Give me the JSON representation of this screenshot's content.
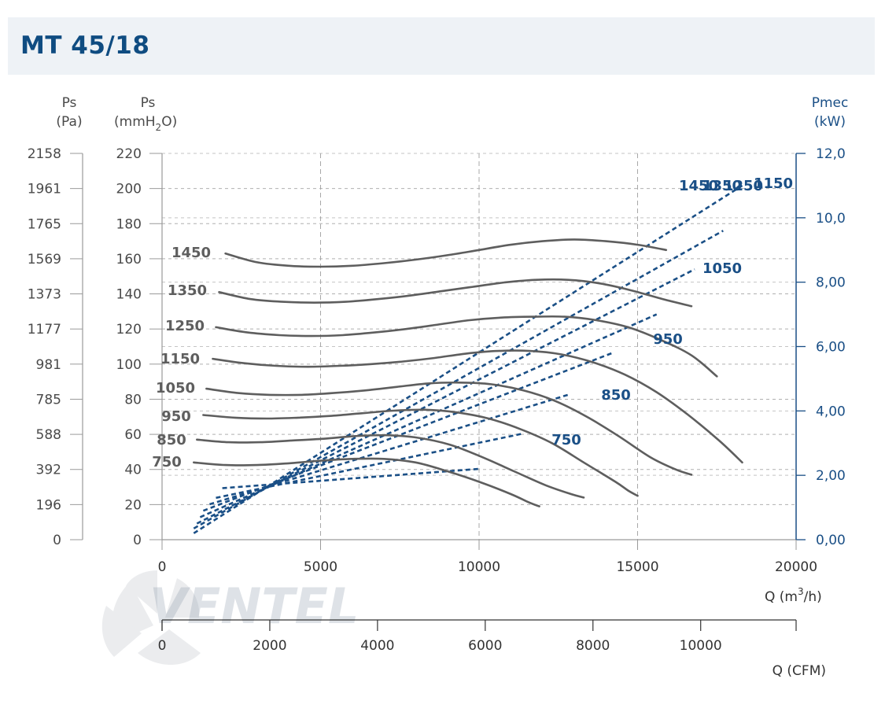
{
  "header": {
    "title": "MT 45/18"
  },
  "chart_data": {
    "type": "line",
    "title": "MT 45/18",
    "left_axis_pa": {
      "label_top": "Ps",
      "label_bottom": "(Pa)",
      "ticks": [
        "2158",
        "1961",
        "1765",
        "1569",
        "1373",
        "1177",
        "981",
        "785",
        "588",
        "392",
        "196",
        "0"
      ]
    },
    "left_axis_mmh2o": {
      "label_top": "Ps",
      "label_bottom": "(mmH",
      "label_sub": "2",
      "label_end": "O)",
      "ticks": [
        220,
        200,
        180,
        160,
        140,
        120,
        100,
        80,
        60,
        40,
        20,
        0
      ],
      "ylim": [
        0,
        220
      ]
    },
    "right_axis_pmec": {
      "label_top": "Pmec",
      "label_bottom": "(kW)",
      "ticks": [
        "12,0",
        "10,0",
        "8,00",
        "6,00",
        "4,00",
        "2,00",
        "0,00"
      ],
      "ylim": [
        0,
        12
      ]
    },
    "x_axis_m3h": {
      "ticks": [
        0,
        5000,
        10000,
        15000,
        20000
      ],
      "label_main": "Q (m",
      "label_sup": "3",
      "label_end": "/h)",
      "xlim": [
        0,
        20000
      ]
    },
    "x_axis_cfm": {
      "ticks": [
        0,
        2000,
        4000,
        6000,
        8000,
        10000
      ],
      "label": "Q (CFM)"
    },
    "pressure_curves": [
      {
        "name": "1450",
        "x": [
          2000,
          3000,
          4000,
          5000,
          6000,
          7000,
          8000,
          9000,
          10000,
          11000,
          12000,
          13000,
          14000,
          15000,
          15900
        ],
        "y": [
          163,
          158,
          156,
          155.5,
          156,
          157.5,
          159.5,
          162,
          165,
          168,
          170,
          171,
          170,
          168,
          165
        ]
      },
      {
        "name": "1350",
        "x": [
          1800,
          2800,
          3800,
          4800,
          5800,
          6800,
          7800,
          8800,
          9800,
          10800,
          11800,
          12800,
          13800,
          14800,
          15800,
          16700
        ],
        "y": [
          141,
          137,
          135.5,
          135,
          135.5,
          137,
          139,
          141.5,
          144,
          146.5,
          148,
          148,
          146,
          142,
          137,
          133
        ]
      },
      {
        "name": "1250",
        "x": [
          1700,
          2700,
          3700,
          4700,
          5700,
          6700,
          7700,
          8700,
          9700,
          10700,
          11700,
          12700,
          13700,
          14700,
          15700,
          16700,
          17500
        ],
        "y": [
          121,
          118,
          116.5,
          116,
          116.5,
          118,
          120,
          122.5,
          125,
          126.5,
          127,
          127,
          125,
          121,
          114,
          105,
          93
        ]
      },
      {
        "name": "1150",
        "x": [
          1600,
          2600,
          3600,
          4600,
          5600,
          6600,
          7600,
          8600,
          9600,
          10600,
          11600,
          12600,
          13600,
          14600,
          15600,
          16600,
          17600,
          18300
        ],
        "y": [
          103,
          100.5,
          99,
          98.5,
          99,
          100,
          101.5,
          103.5,
          106,
          107.5,
          107.5,
          105.5,
          101,
          94,
          84,
          71,
          56,
          44
        ]
      },
      {
        "name": "1050",
        "x": [
          1400,
          2400,
          3400,
          4400,
          5400,
          6400,
          7400,
          8400,
          9400,
          10400,
          11400,
          12400,
          13400,
          14400,
          15400,
          16200,
          16700
        ],
        "y": [
          86,
          83.5,
          82.5,
          82.5,
          83.5,
          85,
          87,
          89,
          89.5,
          88.5,
          85,
          79,
          70,
          59,
          47,
          40,
          37
        ]
      },
      {
        "name": "950",
        "x": [
          1300,
          2300,
          3300,
          4300,
          5300,
          6300,
          7300,
          8300,
          9300,
          10300,
          11300,
          12300,
          13300,
          14300,
          14700,
          15000
        ],
        "y": [
          71,
          69.5,
          69,
          69.5,
          70.5,
          72,
          73.5,
          74,
          72.5,
          69,
          63,
          55,
          44,
          33,
          28,
          25
        ]
      },
      {
        "name": "850",
        "x": [
          1100,
          2100,
          3100,
          4100,
          5100,
          6100,
          7100,
          8100,
          9100,
          10100,
          11100,
          12100,
          12900,
          13300
        ],
        "y": [
          57,
          55.5,
          55.5,
          56.5,
          57.5,
          59,
          59.5,
          58,
          54,
          47,
          39,
          31,
          26,
          24
        ]
      },
      {
        "name": "750",
        "x": [
          1000,
          2000,
          3000,
          4000,
          5000,
          6000,
          7000,
          8000,
          9000,
          10000,
          11000,
          11600,
          11900
        ],
        "y": [
          44,
          42.5,
          42.5,
          43.5,
          45,
          46,
          46,
          44,
          39,
          33,
          26,
          21,
          19
        ]
      }
    ],
    "pressure_curve_label_texts": [
      "1450",
      "1350",
      "1250",
      "1150",
      "1050",
      "950",
      "850",
      "750"
    ],
    "power_curves": [
      {
        "name": "750",
        "x": [
          1900,
          10000
        ],
        "y": [
          1.6,
          2.2
        ]
      },
      {
        "name": "850",
        "x": [
          1700,
          11400
        ],
        "y": [
          1.3,
          3.3
        ]
      },
      {
        "name": "950",
        "x": [
          1500,
          12800
        ],
        "y": [
          1.1,
          4.5
        ]
      },
      {
        "name": "1050",
        "x": [
          1300,
          14200
        ],
        "y": [
          0.9,
          5.8
        ]
      },
      {
        "name": "1150",
        "x": [
          1200,
          15600
        ],
        "y": [
          0.7,
          7.0
        ]
      },
      {
        "name": "1250",
        "x": [
          1100,
          16800
        ],
        "y": [
          0.5,
          8.4
        ]
      },
      {
        "name": "1350",
        "x": [
          1000,
          17700
        ],
        "y": [
          0.35,
          9.6
        ]
      },
      {
        "name": "1450",
        "x": [
          1000,
          18300
        ],
        "y": [
          0.2,
          11.0
        ]
      }
    ],
    "power_curve_label_texts": [
      "1450",
      "1350",
      "1250",
      "1150",
      "1050",
      "950",
      "850",
      "750"
    ],
    "grid": true,
    "colors": {
      "pressure": "#5e5e5e",
      "power": "#1a4f86",
      "axis_blue": "#1a4f86",
      "title": "#0f4c81",
      "header_bg": "#eef2f6"
    }
  },
  "watermark": {
    "text": "VENTEL"
  }
}
